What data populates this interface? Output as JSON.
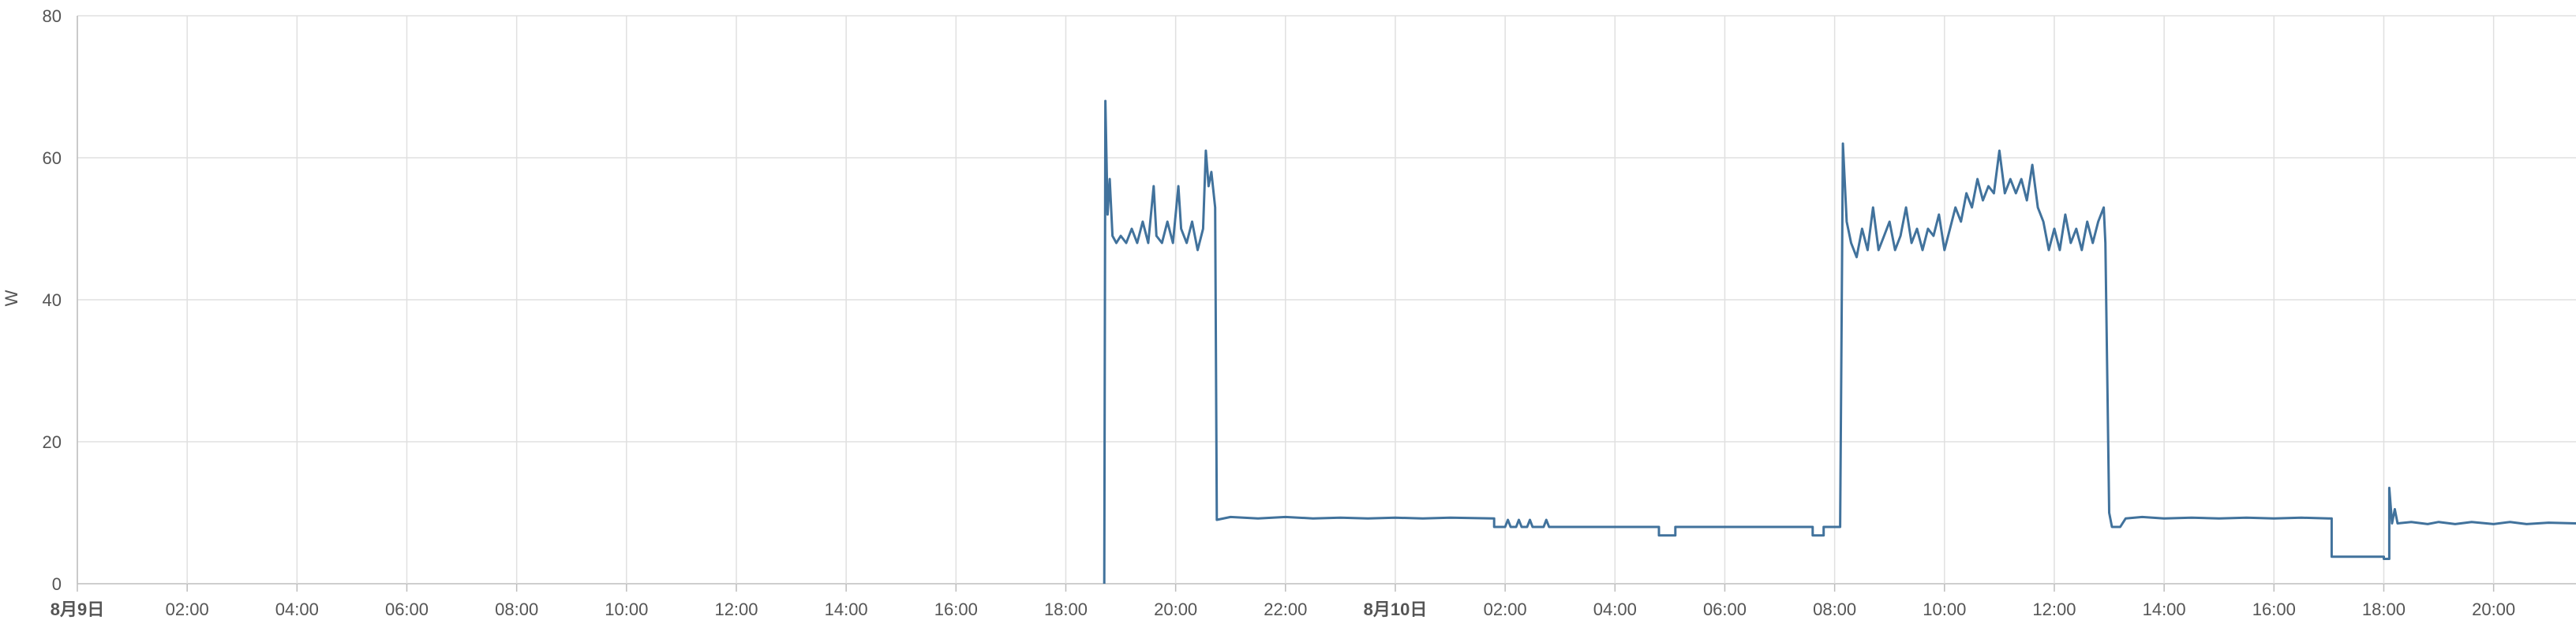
{
  "chart_data": {
    "type": "line",
    "ylabel": "W",
    "ylim": [
      0,
      80
    ],
    "grid": true,
    "y_ticks": [
      0,
      20,
      40,
      60,
      80
    ],
    "x_range_hours": [
      0,
      45.5
    ],
    "x_ticks": [
      {
        "h": 0,
        "label": "8月9日",
        "bold": true
      },
      {
        "h": 2,
        "label": "02:00"
      },
      {
        "h": 4,
        "label": "04:00"
      },
      {
        "h": 6,
        "label": "06:00"
      },
      {
        "h": 8,
        "label": "08:00"
      },
      {
        "h": 10,
        "label": "10:00"
      },
      {
        "h": 12,
        "label": "12:00"
      },
      {
        "h": 14,
        "label": "14:00"
      },
      {
        "h": 16,
        "label": "16:00"
      },
      {
        "h": 18,
        "label": "18:00"
      },
      {
        "h": 20,
        "label": "20:00"
      },
      {
        "h": 22,
        "label": "22:00"
      },
      {
        "h": 24,
        "label": "8月10日",
        "bold": true
      },
      {
        "h": 26,
        "label": "02:00"
      },
      {
        "h": 28,
        "label": "04:00"
      },
      {
        "h": 30,
        "label": "06:00"
      },
      {
        "h": 32,
        "label": "08:00"
      },
      {
        "h": 34,
        "label": "10:00"
      },
      {
        "h": 36,
        "label": "12:00"
      },
      {
        "h": 38,
        "label": "14:00"
      },
      {
        "h": 40,
        "label": "16:00"
      },
      {
        "h": 42,
        "label": "18:00"
      },
      {
        "h": 44,
        "label": "20:00"
      }
    ],
    "line_color": "#41729c",
    "series": [
      {
        "points": [
          [
            18.7,
            0
          ],
          [
            18.72,
            68
          ],
          [
            18.76,
            52
          ],
          [
            18.8,
            57
          ],
          [
            18.85,
            49
          ],
          [
            18.92,
            48
          ],
          [
            19.0,
            49
          ],
          [
            19.1,
            48
          ],
          [
            19.2,
            50
          ],
          [
            19.3,
            48
          ],
          [
            19.4,
            51
          ],
          [
            19.5,
            48
          ],
          [
            19.6,
            56
          ],
          [
            19.65,
            49
          ],
          [
            19.75,
            48
          ],
          [
            19.85,
            51
          ],
          [
            19.95,
            48
          ],
          [
            20.05,
            56
          ],
          [
            20.1,
            50
          ],
          [
            20.2,
            48
          ],
          [
            20.3,
            51
          ],
          [
            20.4,
            47
          ],
          [
            20.5,
            50
          ],
          [
            20.55,
            61
          ],
          [
            20.6,
            56
          ],
          [
            20.65,
            58
          ],
          [
            20.72,
            53
          ],
          [
            20.75,
            9
          ],
          [
            21.0,
            9.4
          ],
          [
            21.5,
            9.2
          ],
          [
            22.0,
            9.4
          ],
          [
            22.5,
            9.2
          ],
          [
            23.0,
            9.3
          ],
          [
            23.5,
            9.2
          ],
          [
            24.0,
            9.3
          ],
          [
            24.5,
            9.2
          ],
          [
            25.0,
            9.3
          ],
          [
            25.8,
            9.2
          ],
          [
            25.8,
            8
          ],
          [
            26.0,
            8
          ],
          [
            26.05,
            9
          ],
          [
            26.1,
            8
          ],
          [
            26.2,
            8
          ],
          [
            26.25,
            9
          ],
          [
            26.3,
            8
          ],
          [
            26.4,
            8
          ],
          [
            26.45,
            9
          ],
          [
            26.5,
            8
          ],
          [
            26.7,
            8
          ],
          [
            26.75,
            9
          ],
          [
            26.8,
            8
          ],
          [
            27.0,
            8
          ],
          [
            27.5,
            8
          ],
          [
            28.0,
            8
          ],
          [
            28.5,
            8
          ],
          [
            28.8,
            8
          ],
          [
            28.8,
            6.8
          ],
          [
            29.1,
            6.8
          ],
          [
            29.1,
            8
          ],
          [
            30.0,
            8
          ],
          [
            30.5,
            8
          ],
          [
            31.0,
            8
          ],
          [
            31.6,
            8
          ],
          [
            31.6,
            6.8
          ],
          [
            31.8,
            6.8
          ],
          [
            31.8,
            8
          ],
          [
            32.1,
            8
          ],
          [
            32.15,
            62
          ],
          [
            32.22,
            51
          ],
          [
            32.3,
            48
          ],
          [
            32.4,
            46
          ],
          [
            32.5,
            50
          ],
          [
            32.6,
            47
          ],
          [
            32.7,
            53
          ],
          [
            32.8,
            47
          ],
          [
            32.9,
            49
          ],
          [
            33.0,
            51
          ],
          [
            33.1,
            47
          ],
          [
            33.2,
            49
          ],
          [
            33.3,
            53
          ],
          [
            33.4,
            48
          ],
          [
            33.5,
            50
          ],
          [
            33.6,
            47
          ],
          [
            33.7,
            50
          ],
          [
            33.8,
            49
          ],
          [
            33.9,
            52
          ],
          [
            34.0,
            47
          ],
          [
            34.1,
            50
          ],
          [
            34.2,
            53
          ],
          [
            34.3,
            51
          ],
          [
            34.4,
            55
          ],
          [
            34.5,
            53
          ],
          [
            34.6,
            57
          ],
          [
            34.7,
            54
          ],
          [
            34.8,
            56
          ],
          [
            34.9,
            55
          ],
          [
            35.0,
            61
          ],
          [
            35.1,
            55
          ],
          [
            35.2,
            57
          ],
          [
            35.3,
            55
          ],
          [
            35.4,
            57
          ],
          [
            35.5,
            54
          ],
          [
            35.6,
            59
          ],
          [
            35.7,
            53
          ],
          [
            35.8,
            51
          ],
          [
            35.9,
            47
          ],
          [
            36.0,
            50
          ],
          [
            36.1,
            47
          ],
          [
            36.2,
            52
          ],
          [
            36.3,
            48
          ],
          [
            36.4,
            50
          ],
          [
            36.5,
            47
          ],
          [
            36.6,
            51
          ],
          [
            36.7,
            48
          ],
          [
            36.8,
            51
          ],
          [
            36.9,
            53
          ],
          [
            36.93,
            48
          ],
          [
            37.0,
            10
          ],
          [
            37.05,
            8
          ],
          [
            37.2,
            8
          ],
          [
            37.3,
            9.2
          ],
          [
            37.6,
            9.4
          ],
          [
            38.0,
            9.2
          ],
          [
            38.5,
            9.3
          ],
          [
            39.0,
            9.2
          ],
          [
            39.5,
            9.3
          ],
          [
            40.0,
            9.2
          ],
          [
            40.5,
            9.3
          ],
          [
            41.0,
            9.2
          ],
          [
            41.05,
            9.2
          ],
          [
            41.05,
            3.8
          ],
          [
            42.0,
            3.8
          ],
          [
            42.0,
            3.5
          ],
          [
            42.1,
            3.5
          ],
          [
            42.1,
            13.5
          ],
          [
            42.15,
            8.5
          ],
          [
            42.2,
            10.5
          ],
          [
            42.25,
            8.5
          ],
          [
            42.5,
            8.7
          ],
          [
            42.8,
            8.4
          ],
          [
            43.0,
            8.7
          ],
          [
            43.3,
            8.4
          ],
          [
            43.6,
            8.7
          ],
          [
            44.0,
            8.4
          ],
          [
            44.3,
            8.7
          ],
          [
            44.6,
            8.4
          ],
          [
            45.0,
            8.6
          ],
          [
            45.5,
            8.5
          ]
        ]
      }
    ]
  }
}
